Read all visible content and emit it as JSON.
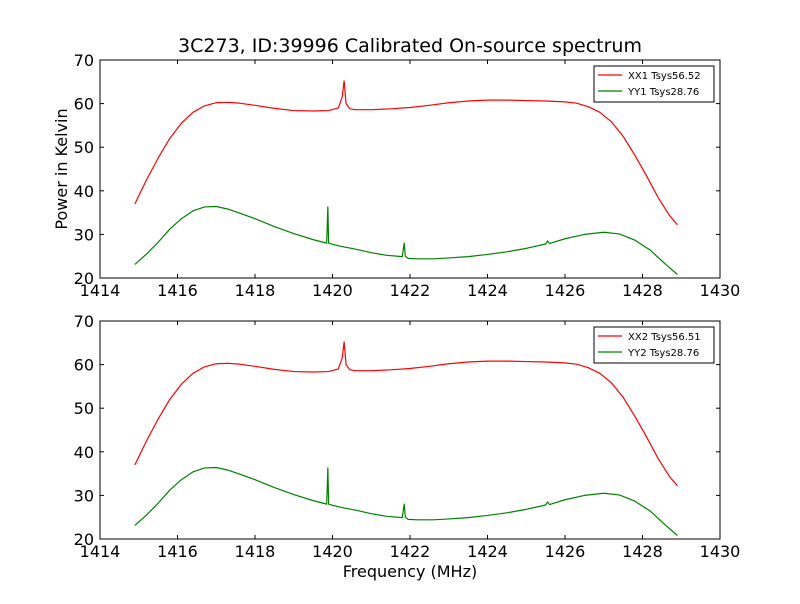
{
  "figure": {
    "title": "3C273, ID:39996 Calibrated On-source spectrum",
    "xlabel": "Frequency (MHz)",
    "ylabel": "Power in Kelvin"
  },
  "chart_data": [
    {
      "type": "line",
      "xlim": [
        1414,
        1430
      ],
      "ylim": [
        20,
        70
      ],
      "xticks": [
        1414,
        1416,
        1418,
        1420,
        1422,
        1424,
        1426,
        1428,
        1430
      ],
      "yticks": [
        20,
        30,
        40,
        50,
        60,
        70
      ],
      "grid": false,
      "legend_position": "top-right",
      "series": [
        {
          "name": "XX1 Tsys56.52",
          "color": "#ff0000",
          "x": [
            1414.9,
            1415.2,
            1415.5,
            1415.8,
            1416.1,
            1416.4,
            1416.7,
            1417.0,
            1417.3,
            1417.6,
            1418.0,
            1418.5,
            1419.0,
            1419.5,
            1419.9,
            1420.15,
            1420.25,
            1420.3,
            1420.35,
            1420.45,
            1420.6,
            1421.0,
            1421.5,
            1422.0,
            1422.5,
            1423.0,
            1423.5,
            1424.0,
            1424.5,
            1425.0,
            1425.5,
            1426.0,
            1426.3,
            1426.6,
            1426.9,
            1427.2,
            1427.5,
            1427.8,
            1428.1,
            1428.4,
            1428.7,
            1428.9
          ],
          "y": [
            37,
            42.5,
            47.5,
            52,
            55.5,
            58,
            59.5,
            60.2,
            60.3,
            60.1,
            59.6,
            58.9,
            58.4,
            58.3,
            58.4,
            59,
            61.5,
            65.2,
            60,
            58.8,
            58.6,
            58.6,
            58.8,
            59.1,
            59.6,
            60.2,
            60.6,
            60.8,
            60.8,
            60.7,
            60.6,
            60.4,
            60.1,
            59.3,
            58,
            55.8,
            52.5,
            48.2,
            43.5,
            38.5,
            34.3,
            32.2
          ]
        },
        {
          "name": "YY1 Tsys28.76",
          "color": "#008000",
          "x": [
            1414.9,
            1415.2,
            1415.5,
            1415.8,
            1416.1,
            1416.4,
            1416.7,
            1417.0,
            1417.3,
            1417.6,
            1418.0,
            1418.5,
            1419.0,
            1419.5,
            1419.85,
            1419.88,
            1419.9,
            1419.93,
            1420.2,
            1420.6,
            1421.0,
            1421.4,
            1421.8,
            1421.85,
            1421.88,
            1421.95,
            1422.2,
            1422.6,
            1423.0,
            1423.5,
            1424.0,
            1424.5,
            1425.0,
            1425.5,
            1425.55,
            1425.6,
            1426.0,
            1426.5,
            1427.0,
            1427.4,
            1427.8,
            1428.2,
            1428.6,
            1428.9
          ],
          "y": [
            23.1,
            25.5,
            28.2,
            31.2,
            33.6,
            35.4,
            36.3,
            36.4,
            35.8,
            34.9,
            33.6,
            31.8,
            30.2,
            28.8,
            28,
            36.3,
            28,
            27.9,
            27.3,
            26.6,
            25.8,
            25.2,
            24.9,
            28,
            25,
            24.5,
            24.4,
            24.4,
            24.6,
            24.9,
            25.4,
            26,
            26.8,
            27.8,
            28.5,
            27.9,
            29,
            30,
            30.5,
            30.1,
            28.7,
            26.4,
            23.1,
            20.8
          ]
        }
      ]
    },
    {
      "type": "line",
      "xlim": [
        1414,
        1430
      ],
      "ylim": [
        20,
        70
      ],
      "xticks": [
        1414,
        1416,
        1418,
        1420,
        1422,
        1424,
        1426,
        1428,
        1430
      ],
      "yticks": [
        20,
        30,
        40,
        50,
        60,
        70
      ],
      "grid": false,
      "legend_position": "top-right",
      "series": [
        {
          "name": "XX2 Tsys56.51",
          "color": "#ff0000",
          "x": [
            1414.9,
            1415.2,
            1415.5,
            1415.8,
            1416.1,
            1416.4,
            1416.7,
            1417.0,
            1417.3,
            1417.6,
            1418.0,
            1418.5,
            1419.0,
            1419.5,
            1419.9,
            1420.15,
            1420.25,
            1420.3,
            1420.35,
            1420.45,
            1420.6,
            1421.0,
            1421.5,
            1422.0,
            1422.5,
            1423.0,
            1423.5,
            1424.0,
            1424.5,
            1425.0,
            1425.5,
            1426.0,
            1426.3,
            1426.6,
            1426.9,
            1427.2,
            1427.5,
            1427.8,
            1428.1,
            1428.4,
            1428.7,
            1428.9
          ],
          "y": [
            37,
            42.5,
            47.5,
            52,
            55.5,
            58,
            59.5,
            60.2,
            60.3,
            60.1,
            59.6,
            58.9,
            58.4,
            58.3,
            58.4,
            59,
            61.5,
            65.2,
            60,
            58.8,
            58.6,
            58.6,
            58.8,
            59.1,
            59.6,
            60.2,
            60.6,
            60.8,
            60.8,
            60.7,
            60.6,
            60.4,
            60.1,
            59.3,
            58,
            55.8,
            52.5,
            48.2,
            43.5,
            38.5,
            34.3,
            32.2
          ]
        },
        {
          "name": "YY2 Tsys28.76",
          "color": "#008000",
          "x": [
            1414.9,
            1415.2,
            1415.5,
            1415.8,
            1416.1,
            1416.4,
            1416.7,
            1417.0,
            1417.3,
            1417.6,
            1418.0,
            1418.5,
            1419.0,
            1419.5,
            1419.85,
            1419.88,
            1419.9,
            1419.93,
            1420.2,
            1420.6,
            1421.0,
            1421.4,
            1421.8,
            1421.85,
            1421.88,
            1421.95,
            1422.2,
            1422.6,
            1423.0,
            1423.5,
            1424.0,
            1424.5,
            1425.0,
            1425.5,
            1425.55,
            1425.6,
            1426.0,
            1426.5,
            1427.0,
            1427.4,
            1427.8,
            1428.2,
            1428.6,
            1428.9
          ],
          "y": [
            23.1,
            25.5,
            28.2,
            31.2,
            33.6,
            35.4,
            36.3,
            36.4,
            35.8,
            34.9,
            33.6,
            31.8,
            30.2,
            28.8,
            28,
            36.3,
            28,
            27.9,
            27.3,
            26.6,
            25.8,
            25.2,
            24.9,
            28,
            25,
            24.5,
            24.4,
            24.4,
            24.6,
            24.9,
            25.4,
            26,
            26.8,
            27.8,
            28.5,
            27.9,
            29,
            30,
            30.5,
            30.1,
            28.7,
            26.4,
            23.1,
            20.8
          ]
        }
      ]
    }
  ]
}
